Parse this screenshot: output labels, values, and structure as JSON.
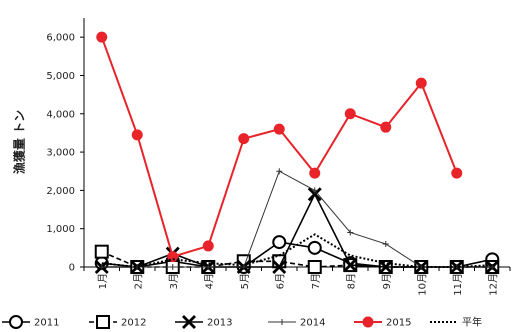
{
  "chart_data": {
    "type": "line",
    "ylabel": "漁獲量 トン",
    "ylim": [
      0,
      6500
    ],
    "yticks": [
      0,
      1000,
      2000,
      3000,
      4000,
      5000,
      6000
    ],
    "ytick_labels": [
      "0",
      "1,000",
      "2,000",
      "3,000",
      "4,000",
      "5,000",
      "6,000"
    ],
    "categories": [
      "1月",
      "2月",
      "3月",
      "4月",
      "5月",
      "6月",
      "7月",
      "8月",
      "9月",
      "10月",
      "11月",
      "12月"
    ],
    "legend_position": "bottom",
    "series": [
      {
        "name": "2011",
        "color": "#000000",
        "marker": "circle",
        "dash": "solid",
        "width": 1.6,
        "values": [
          100,
          0,
          150,
          0,
          0,
          650,
          500,
          100,
          0,
          0,
          0,
          200
        ]
      },
      {
        "name": "2012",
        "color": "#000000",
        "marker": "square",
        "dash": "dashed",
        "width": 1.6,
        "values": [
          400,
          0,
          0,
          0,
          150,
          150,
          0,
          50,
          0,
          0,
          0,
          0
        ]
      },
      {
        "name": "2013",
        "color": "#000000",
        "marker": "x",
        "dash": "solid",
        "width": 1.6,
        "values": [
          0,
          0,
          350,
          0,
          0,
          0,
          1900,
          50,
          0,
          0,
          0,
          0
        ]
      },
      {
        "name": "2014",
        "color": "#333333",
        "marker": "plus",
        "dash": "solid",
        "width": 1,
        "values": [
          0,
          0,
          0,
          0,
          0,
          2500,
          2000,
          900,
          600,
          0,
          0,
          0
        ]
      },
      {
        "name": "2015",
        "color": "#e8242a",
        "marker": "dot",
        "dash": "solid",
        "width": 2,
        "values": [
          6000,
          3450,
          270,
          550,
          3350,
          3600,
          2450,
          4000,
          3650,
          4800,
          2450,
          null
        ]
      },
      {
        "name": "平年",
        "color": "#000000",
        "marker": "none",
        "dash": "dotted",
        "width": 2,
        "values": [
          100,
          0,
          200,
          100,
          50,
          300,
          850,
          300,
          100,
          0,
          0,
          50
        ]
      }
    ]
  }
}
